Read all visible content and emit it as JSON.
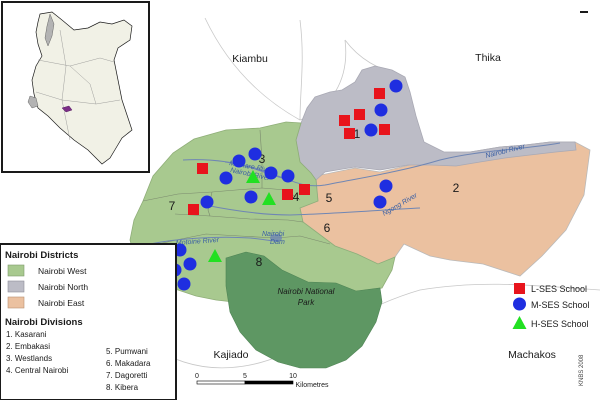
{
  "region_labels": {
    "north_west": "Kiambu",
    "north_east": "Thika",
    "south_west": "Kajiado",
    "south_east": "Machakos",
    "park_line1": "Nairobi National",
    "park_line2": "Park"
  },
  "rivers": {
    "nairobi_river_east": "Nairobi River",
    "nairobi_river_central": "Nairobi River",
    "mathare_river": "Mathare River",
    "ngong_river": "Ngong River",
    "motoine_river": "Motoine River",
    "dam_line1": "Nairobi",
    "dam_line2": "Dam"
  },
  "division_numbers": [
    "1",
    "2",
    "3",
    "4",
    "5",
    "6",
    "7",
    "8"
  ],
  "districts_legend": {
    "title": "Nairobi Districts",
    "items": [
      {
        "label": "Nairobi West",
        "color": "#a8c98f"
      },
      {
        "label": "Nairobi North",
        "color": "#bcbcc6"
      },
      {
        "label": "Nairobi East",
        "color": "#ebc1a0"
      }
    ]
  },
  "divisions_legend": {
    "title": "Nairobi Divisions",
    "col1": [
      "1. Kasarani",
      "2. Embakasi",
      "3. Westlands",
      "4. Central Nairobi"
    ],
    "col2": [
      "5. Pumwani",
      "6. Makadara",
      "7. Dagoretti",
      "8. Kibera"
    ]
  },
  "school_legend": [
    {
      "label": "L-SES School",
      "shape": "square",
      "color": "#e8141c"
    },
    {
      "label": "M-SES School",
      "shape": "circle",
      "color": "#1f2ee0"
    },
    {
      "label": "H-SES School",
      "shape": "triangle",
      "color": "#22e022"
    }
  ],
  "scale_bar": {
    "ticks": [
      "0",
      "5",
      "10"
    ],
    "unit": "Kilometres"
  },
  "credit": "KNBS 2008",
  "colors": {
    "west": "#a8c98f",
    "north": "#bcbcc6",
    "east": "#ebc1a0",
    "park": "#5e9763",
    "river": "#6f86b4"
  }
}
